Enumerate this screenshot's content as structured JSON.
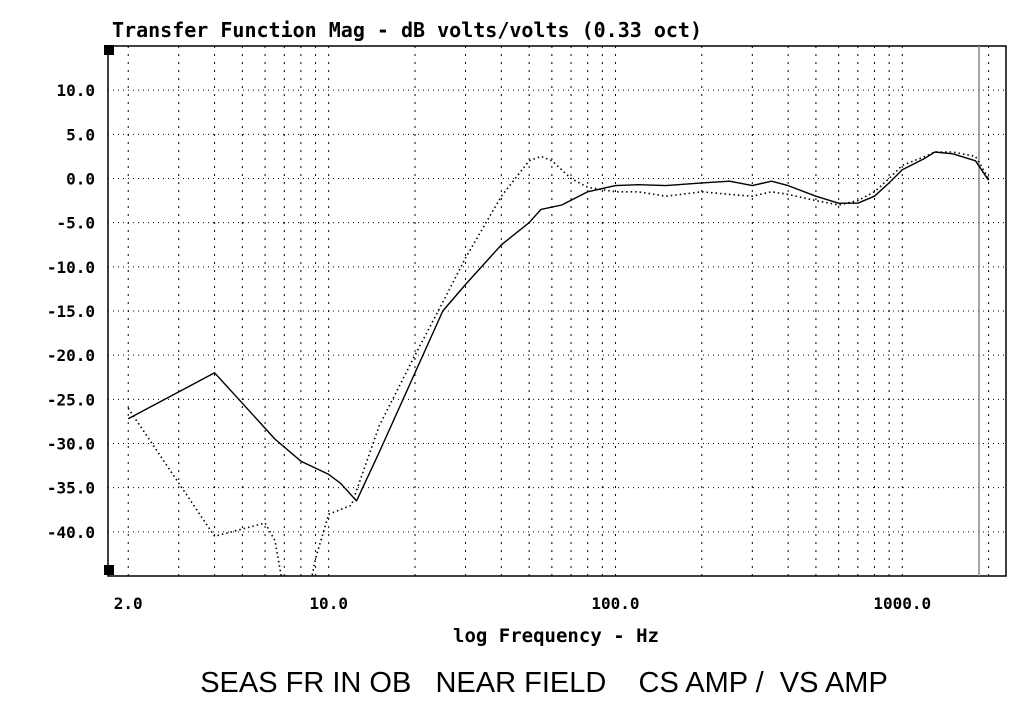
{
  "chart_data": {
    "type": "line",
    "title": "Transfer Function Mag - dB volts/volts (0.33 oct)",
    "xlabel": "log Frequency - Hz",
    "ylabel": "",
    "caption": "SEAS FR IN OB   NEAR FIELD    CS AMP /  VS AMP",
    "xscale": "log",
    "xlim": [
      1.7,
      2300
    ],
    "ylim": [
      -45,
      15
    ],
    "x_ticks": [
      2,
      10,
      100,
      1000
    ],
    "x_tick_labels": [
      "2.0",
      "10.0",
      "100.0",
      "1000.0"
    ],
    "y_ticks": [
      10,
      5,
      0,
      -5,
      -10,
      -15,
      -20,
      -25,
      -30,
      -35,
      -40
    ],
    "y_tick_labels": [
      "10.0",
      "5.0",
      "0.0",
      "-5.0",
      "-10.0",
      "-15.0",
      "-20.0",
      "-25.0",
      "-30.0",
      "-35.0",
      "-40.0"
    ],
    "grid": true,
    "series": [
      {
        "style": "solid",
        "color": "#000000",
        "x": [
          2,
          4,
          6.5,
          8,
          10,
          11,
          12.5,
          15,
          20,
          25,
          30,
          40,
          50,
          55,
          65,
          80,
          100,
          120,
          150,
          200,
          250,
          300,
          350,
          400,
          500,
          600,
          700,
          800,
          900,
          1000,
          1200,
          1300,
          1500,
          1800,
          2000
        ],
        "y": [
          -27.2,
          -22,
          -29.5,
          -32,
          -33.5,
          -34.5,
          -36.5,
          -31,
          -22,
          -15,
          -12,
          -7.5,
          -5,
          -3.5,
          -3,
          -1.5,
          -0.8,
          -0.7,
          -0.8,
          -0.5,
          -0.3,
          -0.8,
          -0.3,
          -0.8,
          -2,
          -2.8,
          -2.8,
          -2,
          -0.5,
          1,
          2.3,
          3,
          2.8,
          2,
          -0.2
        ]
      },
      {
        "style": "dotted",
        "color": "#000000",
        "x": [
          2,
          4,
          6,
          6.5,
          7,
          8.5,
          9,
          10,
          12,
          15,
          20,
          25,
          30,
          40,
          50,
          55,
          60,
          70,
          80,
          100,
          120,
          150,
          200,
          250,
          300,
          350,
          400,
          500,
          600,
          700,
          800,
          900,
          1000,
          1200,
          1300,
          1500,
          1800,
          2000
        ],
        "y": [
          -26,
          -40.5,
          -39,
          -41,
          -47,
          -47,
          -43,
          -38,
          -37,
          -28,
          -20,
          -14,
          -9,
          -2,
          2,
          2.5,
          2,
          0,
          -1,
          -1.5,
          -1.5,
          -2,
          -1.5,
          -1.8,
          -2,
          -1.5,
          -1.8,
          -2.5,
          -3,
          -2.5,
          -1.5,
          0,
          1.5,
          2.5,
          3,
          3,
          2.5,
          0
        ]
      }
    ]
  }
}
